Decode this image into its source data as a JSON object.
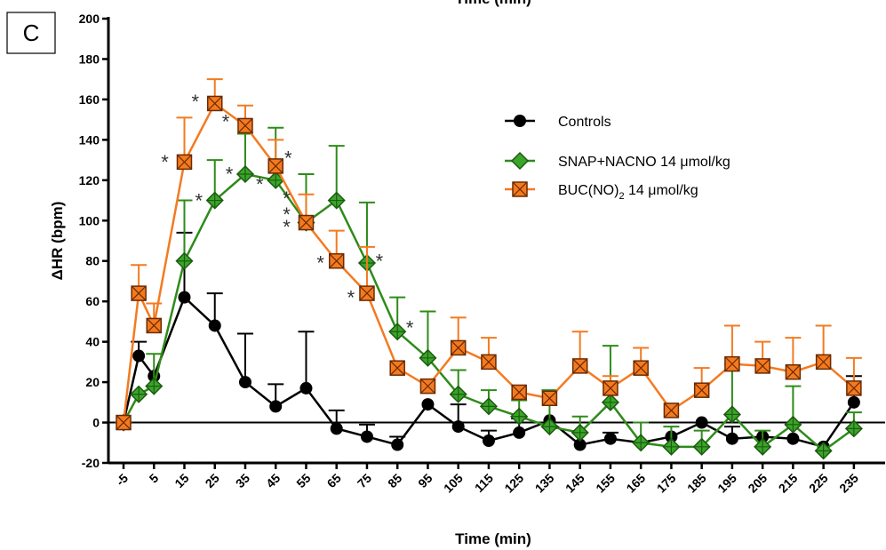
{
  "chart_data": {
    "type": "line",
    "panel_label": "C",
    "top_label": "Time (min)",
    "xlabel": "Time (min)",
    "ylabel": "ΔHR (bpm)",
    "ylim": [
      -20,
      200
    ],
    "yticks": [
      -20,
      0,
      20,
      40,
      60,
      80,
      100,
      120,
      140,
      160,
      180,
      200
    ],
    "xlim": [
      -5,
      240
    ],
    "xticks": [
      -5,
      5,
      15,
      25,
      35,
      45,
      55,
      65,
      75,
      85,
      95,
      105,
      115,
      125,
      135,
      145,
      155,
      165,
      175,
      185,
      195,
      205,
      215,
      225,
      235
    ],
    "zero_line": true,
    "legend_position": "top-right",
    "series": [
      {
        "name": "Controls",
        "color": "#000000",
        "marker": "circle",
        "x": [
          -5,
          0,
          5,
          15,
          25,
          35,
          45,
          55,
          65,
          75,
          85,
          95,
          105,
          115,
          125,
          135,
          145,
          155,
          165,
          175,
          185,
          195,
          205,
          215,
          225,
          235
        ],
        "y": [
          0,
          33,
          23,
          62,
          48,
          20,
          8,
          17,
          -3,
          -7,
          -11,
          9,
          -2,
          -9,
          -5,
          1,
          -11,
          -8,
          -10,
          -7,
          0,
          -8,
          -7,
          -8,
          -12,
          10
        ],
        "err": [
          0,
          7,
          0,
          32,
          16,
          24,
          11,
          28,
          9,
          6,
          4,
          0,
          11,
          5,
          7,
          0,
          6,
          3,
          0,
          0,
          0,
          6,
          0,
          0,
          0,
          13
        ]
      },
      {
        "name": "SNAP+NACNO  14 μmol/kg",
        "color": "#2e8b1a",
        "marker": "diamond",
        "x": [
          -5,
          0,
          5,
          15,
          25,
          35,
          45,
          55,
          65,
          75,
          85,
          95,
          105,
          115,
          125,
          135,
          145,
          155,
          165,
          175,
          185,
          195,
          205,
          215,
          225,
          235
        ],
        "y": [
          0,
          14,
          18,
          80,
          110,
          123,
          120,
          99,
          110,
          79,
          45,
          32,
          14,
          8,
          3,
          -2,
          -5,
          10,
          -10,
          -12,
          -12,
          4,
          -12,
          -1,
          -14,
          -3
        ],
        "err": [
          0,
          0,
          16,
          30,
          20,
          20,
          26,
          24,
          27,
          30,
          17,
          23,
          12,
          8,
          8,
          18,
          8,
          28,
          10,
          10,
          8,
          25,
          8,
          19,
          0,
          8
        ]
      },
      {
        "name": "BUC(NO)",
        "name_subscript": "2",
        "name_suffix": " 14 μmol/kg",
        "color": "#f47a20",
        "marker": "square-x",
        "x": [
          -5,
          0,
          5,
          15,
          25,
          35,
          45,
          55,
          65,
          75,
          85,
          95,
          105,
          115,
          125,
          135,
          145,
          155,
          165,
          175,
          185,
          195,
          205,
          215,
          225,
          235
        ],
        "y": [
          0,
          64,
          48,
          129,
          158,
          147,
          127,
          99,
          80,
          64,
          27,
          18,
          37,
          30,
          15,
          12,
          28,
          17,
          27,
          6,
          16,
          29,
          28,
          25,
          30,
          17
        ],
        "err": [
          0,
          14,
          11,
          22,
          12,
          10,
          13,
          14,
          15,
          23,
          0,
          0,
          15,
          12,
          0,
          0,
          17,
          6,
          10,
          0,
          11,
          19,
          12,
          17,
          18,
          15
        ]
      }
    ],
    "annotations": [
      {
        "text": "*",
        "x": 15,
        "y": 130
      },
      {
        "text": "*",
        "x": 25,
        "y": 160
      },
      {
        "text": "*",
        "x": 35,
        "y": 150
      },
      {
        "text": "*",
        "x": 45,
        "y": 132
      },
      {
        "text": "*",
        "x": 65,
        "y": 80
      },
      {
        "text": "*",
        "x": 75,
        "y": 63
      },
      {
        "text": "*",
        "x": 25,
        "y": 111
      },
      {
        "text": "*",
        "x": 35,
        "y": 124
      },
      {
        "text": "*",
        "x": 45,
        "y": 119
      },
      {
        "text": "*",
        "x": 55,
        "y": 112
      },
      {
        "text": "*",
        "x": 55,
        "y": 104
      },
      {
        "text": "*",
        "x": 55,
        "y": 98
      },
      {
        "text": "*",
        "x": 75,
        "y": 81
      },
      {
        "text": "*",
        "x": 85,
        "y": 48
      }
    ]
  }
}
